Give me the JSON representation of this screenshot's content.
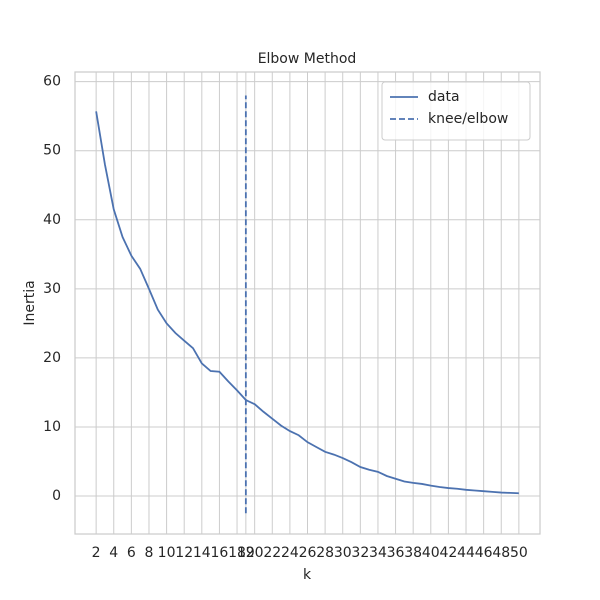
{
  "chart_data": {
    "type": "line",
    "title": "Elbow Method",
    "x_label": "k",
    "y_label": "Inertia",
    "xlim": [
      -0.4,
      52.4
    ],
    "ylim": [
      -5.5,
      61.4
    ],
    "xticks": [
      2,
      4,
      6,
      8,
      10,
      12,
      14,
      16,
      18,
      19,
      20,
      22,
      24,
      26,
      28,
      30,
      32,
      34,
      36,
      38,
      40,
      42,
      44,
      46,
      48,
      50
    ],
    "yticks": [
      0,
      10,
      20,
      30,
      40,
      50,
      60
    ],
    "grid": true,
    "legend": "upper right",
    "series": [
      {
        "name": "data",
        "color": "#4c72b0",
        "dashed": false,
        "x": [
          2,
          3,
          4,
          5,
          6,
          7,
          8,
          9,
          10,
          11,
          12,
          13,
          14,
          15,
          16,
          17,
          18,
          19,
          20,
          21,
          22,
          23,
          24,
          25,
          26,
          27,
          28,
          29,
          30,
          31,
          32,
          33,
          34,
          35,
          36,
          37,
          38,
          39,
          40,
          41,
          42,
          43,
          44,
          45,
          46,
          47,
          48,
          49,
          50
        ],
        "values": [
          55.7,
          48,
          41.5,
          37.5,
          34.8,
          32.9,
          30,
          27,
          25,
          23.6,
          22.5,
          21.4,
          19.2,
          18.1,
          18.0,
          16.6,
          15.3,
          13.9,
          13.3,
          12.2,
          11.2,
          10.2,
          9.4,
          8.8,
          7.8,
          7.1,
          6.4,
          6.0,
          5.5,
          4.9,
          4.2,
          3.8,
          3.5,
          2.9,
          2.5,
          2.1,
          1.9,
          1.75,
          1.5,
          1.3,
          1.15,
          1.05,
          0.9,
          0.8,
          0.7,
          0.6,
          0.5,
          0.45,
          0.4
        ]
      },
      {
        "name": "knee/elbow",
        "color": "#4c72b0",
        "dashed": true,
        "x": [
          19,
          19
        ],
        "values": [
          -2.5,
          58
        ]
      }
    ]
  }
}
